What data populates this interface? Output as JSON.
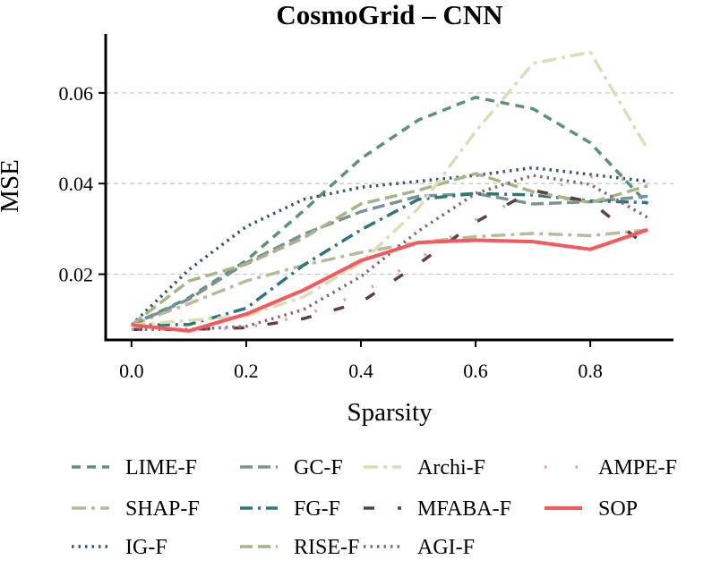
{
  "chart_data": {
    "type": "line",
    "title": "CosmoGrid – CNN",
    "xlabel": "Sparsity",
    "ylabel": "MSE",
    "xlim": [
      -0.045,
      0.945
    ],
    "ylim": [
      0.0055,
      0.073
    ],
    "xticks": [
      0.0,
      0.2,
      0.4,
      0.6,
      0.8
    ],
    "xtick_labels": [
      "0.0",
      "0.2",
      "0.4",
      "0.6",
      "0.8"
    ],
    "yticks": [
      0.02,
      0.04,
      0.06
    ],
    "ytick_labels": [
      "0.02",
      "0.04",
      "0.06"
    ],
    "grid": "horizontal dashed",
    "legend_position": "below",
    "x": [
      0.0,
      0.1,
      0.2,
      0.3,
      0.4,
      0.5,
      0.6,
      0.7,
      0.8,
      0.9
    ],
    "series": [
      {
        "name": "LIME-F",
        "color": "#5b9178",
        "dash": "10,7",
        "width": 3.5,
        "values": [
          0.0088,
          0.0148,
          0.023,
          0.034,
          0.0455,
          0.054,
          0.059,
          0.0565,
          0.049,
          0.0355
        ]
      },
      {
        "name": "SHAP-F",
        "color": "#b9b99c",
        "dash": "16,6,4,6",
        "width": 3.5,
        "values": [
          0.0088,
          0.0135,
          0.0185,
          0.022,
          0.0248,
          0.027,
          0.0283,
          0.029,
          0.0285,
          0.0298
        ]
      },
      {
        "name": "IG-F",
        "color": "#2f5672",
        "dash": "2.5,5",
        "width": 3.5,
        "values": [
          0.0088,
          0.021,
          0.0305,
          0.0365,
          0.0392,
          0.0405,
          0.0418,
          0.0435,
          0.042,
          0.0405
        ]
      },
      {
        "name": "GC-F",
        "color": "#7c9292",
        "dash": "14,6",
        "width": 3.5,
        "values": [
          0.0088,
          0.0145,
          0.0225,
          0.0288,
          0.0338,
          0.0372,
          0.0378,
          0.0355,
          0.036,
          0.0372
        ]
      },
      {
        "name": "FG-F",
        "color": "#2f7478",
        "dash": "14,6,3,6",
        "width": 3.5,
        "values": [
          0.0088,
          0.0089,
          0.0125,
          0.022,
          0.0298,
          0.0365,
          0.0378,
          0.0375,
          0.0362,
          0.0358
        ]
      },
      {
        "name": "RISE-F",
        "color": "#a6b585",
        "dash": "14,6",
        "width": 3.5,
        "values": [
          0.0088,
          0.0185,
          0.0222,
          0.028,
          0.0355,
          0.0385,
          0.0422,
          0.0382,
          0.0358,
          0.0395
        ]
      },
      {
        "name": "Archi-F",
        "color": "#dcdcb6",
        "dash": "16,6,4,6",
        "width": 3.5,
        "values": [
          0.0088,
          0.0098,
          0.0108,
          0.015,
          0.0225,
          0.0345,
          0.0515,
          0.0665,
          0.069,
          0.0475
        ]
      },
      {
        "name": "MFABA-F",
        "color": "#5e3f4c",
        "dash": "12,26",
        "width": 3.5,
        "values": [
          0.0078,
          0.0078,
          0.0082,
          0.0102,
          0.0138,
          0.0222,
          0.0315,
          0.0385,
          0.036,
          0.026
        ]
      },
      {
        "name": "AGI-F",
        "color": "#8d6672",
        "dash": "2.5,5",
        "width": 3.5,
        "values": [
          0.0078,
          0.0078,
          0.0085,
          0.0122,
          0.0195,
          0.0295,
          0.0378,
          0.0418,
          0.0398,
          0.0325
        ]
      },
      {
        "name": "AMPE-F",
        "color": "#d8a49b",
        "dash": "2.5,32",
        "width": 3.5,
        "values": [
          0.0078,
          0.0078,
          0.0082,
          0.0108,
          0.0158,
          0.0232,
          0.032,
          0.038,
          0.0415,
          0.0405
        ]
      },
      {
        "name": "SOP",
        "color": "#f4595b",
        "dash": "",
        "width": 4,
        "values": [
          0.0088,
          0.0075,
          0.0112,
          0.0165,
          0.023,
          0.027,
          0.0275,
          0.0272,
          0.0255,
          0.0298
        ]
      }
    ]
  }
}
